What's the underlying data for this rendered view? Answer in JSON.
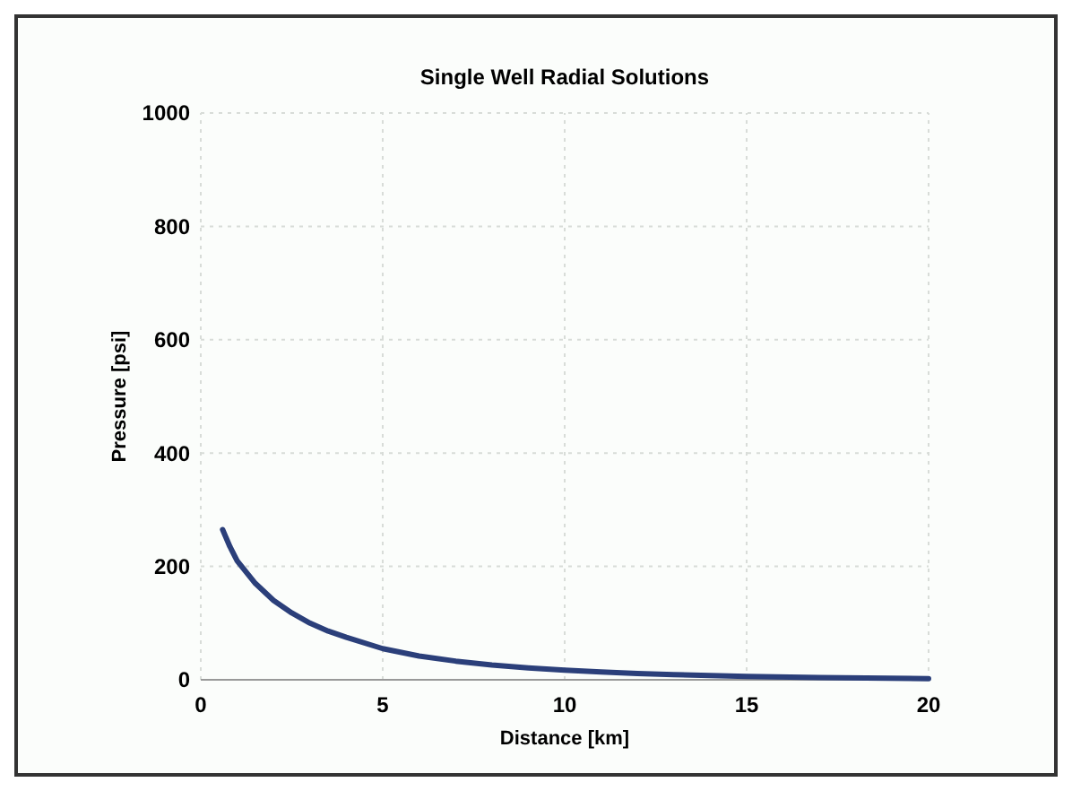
{
  "chart_data": {
    "type": "line",
    "title": "Single Well Radial Solutions",
    "xlabel": "Distance [km]",
    "ylabel": "Pressure [psi]",
    "x": [
      0.6,
      0.8,
      1,
      1.5,
      2,
      2.5,
      3,
      3.5,
      4,
      5,
      6,
      7,
      8,
      9,
      10,
      11,
      12,
      13,
      15,
      17,
      20
    ],
    "series": [
      {
        "color": "#2b3f7a",
        "values": [
          265,
          235,
          210,
          170,
          140,
          118,
          100,
          86,
          75,
          55,
          42,
          33,
          26,
          21,
          17,
          14,
          11,
          9,
          6,
          4,
          2
        ]
      }
    ],
    "xlim": [
      0,
      20
    ],
    "ylim": [
      0,
      1000
    ],
    "xticks": [
      0,
      5,
      10,
      15,
      20
    ],
    "yticks": [
      0,
      200,
      400,
      600,
      800,
      1000
    ],
    "grid": true,
    "line_style": "solid",
    "marker": "none"
  }
}
